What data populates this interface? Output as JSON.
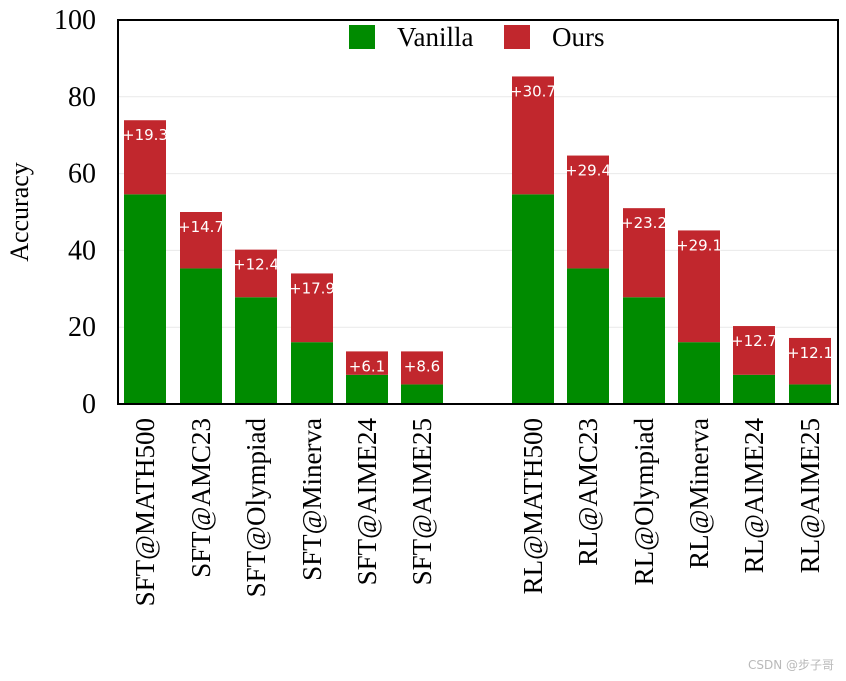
{
  "colors": {
    "vanilla": "#008b00",
    "ours": "#c1272d",
    "grid": "#e9e9e9",
    "axis": "#000000"
  },
  "watermark": "CSDN @步子哥",
  "chart_data": {
    "type": "bar",
    "stacked": true,
    "ylabel": "Accuracy",
    "xlabel": "",
    "ylim": [
      0,
      100
    ],
    "yticks": [
      0,
      20,
      40,
      60,
      80,
      100
    ],
    "grid": true,
    "legend_position": "top-center",
    "categories": [
      "SFT@MATH500",
      "SFT@AMC23",
      "SFT@Olympiad",
      "SFT@Minerva",
      "SFT@AIME24",
      "SFT@AIME25",
      "RL@MATH500",
      "RL@AMC23",
      "RL@Olympiad",
      "RL@Minerva",
      "RL@AIME24",
      "RL@AIME25"
    ],
    "series": [
      {
        "name": "Vanilla",
        "values": [
          54.6,
          35.3,
          27.8,
          16.1,
          7.6,
          5.1,
          54.6,
          35.3,
          27.8,
          16.1,
          7.6,
          5.1
        ]
      },
      {
        "name": "Ours",
        "values": [
          19.3,
          14.7,
          12.4,
          17.9,
          6.1,
          8.6,
          30.7,
          29.4,
          23.2,
          29.1,
          12.7,
          12.1
        ]
      }
    ],
    "data_labels": [
      "+19.3",
      "+14.7",
      "+12.4",
      "+17.9",
      "+6.1",
      "+8.6",
      "+30.7",
      "+29.4",
      "+23.2",
      "+29.1",
      "+12.7",
      "+12.1"
    ]
  }
}
